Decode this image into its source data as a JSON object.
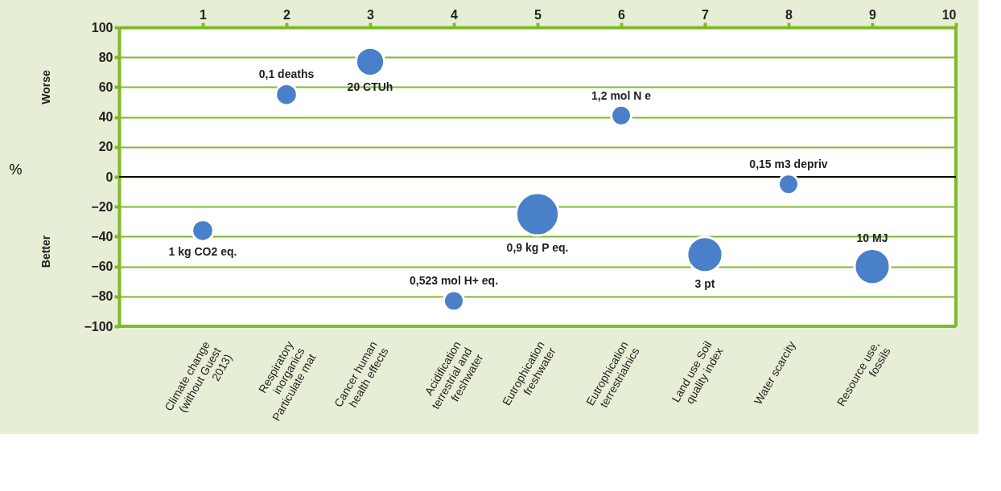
{
  "chart_data": {
    "type": "bubble",
    "ylabel": "%",
    "categories": [
      "Climate change\n(without Guest\n2013)",
      "Respiratory\ninorganics\nParticulate mat",
      "Cancer human\nhealth effects",
      "Acidification\nterrestrial and\nfreshwater",
      "Eutrophication\nfreshwater",
      "Eutrophication\nterrestrialnics",
      "Land use Soil\nquality index",
      "Water scarcity",
      "Resource use,\nfossils"
    ],
    "series": [
      {
        "color": "#4a7fc9",
        "values": [
          -36,
          55,
          77,
          -83,
          -25,
          41,
          -52,
          -5,
          -60
        ],
        "sizes": [
          0.25,
          0.25,
          0.44,
          0.22,
          1,
          0.22,
          0.69,
          0.22,
          0.69
        ]
      }
    ],
    "x2lim": [
      0,
      10
    ],
    "x2ticks": [
      1,
      2,
      3,
      4,
      5,
      6,
      7,
      8,
      9,
      10
    ],
    "ylim": [
      -100,
      100
    ],
    "yticks": [
      -100,
      -80,
      -60,
      -40,
      -20,
      0,
      20,
      40,
      60,
      80,
      100
    ],
    "grid": "y",
    "ref_lines": [
      {
        "axis": "y",
        "value": 0,
        "color": "#000000"
      }
    ],
    "annotations": [
      "Worse",
      "Better",
      "1 kg CO2 eq.",
      "0,1 deaths",
      "20 CTUh",
      "0,523 mol H+ eq.",
      "0,9 kg P eq.",
      "1,2 mol N e",
      "3 pt",
      "0,15 m3 depriv",
      "10 MJ"
    ]
  }
}
